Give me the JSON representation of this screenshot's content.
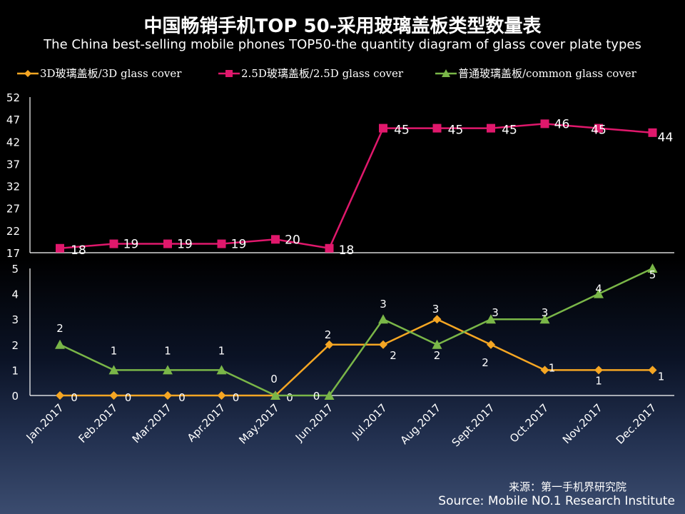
{
  "title": "中国畅销手机TOP 50-采用玻璃盖板类型数量表",
  "subtitle": "The China best-selling mobile phones TOP50-the quantity diagram of glass cover plate types",
  "source_cn": "来源：第一手机界研究院",
  "source_en": "Source: Mobile NO.1 Research Institute",
  "chart_data": {
    "type": "line",
    "categories": [
      "Jan.2017",
      "Feb.2017",
      "Mar.2017",
      "Apr.2017",
      "May.2017",
      "Jun.2017",
      "Jul.2017",
      "Aug.2017",
      "Sept.2017",
      "Oct.2017",
      "Nov.2017",
      "Dec.2017"
    ],
    "series": [
      {
        "name": "3D玻璃盖板/3D glass cover",
        "color": "#f5a623",
        "marker": "diamond",
        "axis": "lower",
        "values": [
          0,
          0,
          0,
          0,
          0,
          2,
          2,
          3,
          2,
          1,
          1,
          1
        ]
      },
      {
        "name": "2.5D玻璃盖板/2.5D glass cover",
        "color": "#e0186c",
        "marker": "square",
        "axis": "upper",
        "values": [
          18,
          19,
          19,
          19,
          20,
          18,
          45,
          45,
          45,
          46,
          45,
          44
        ]
      },
      {
        "name": "普通玻璃盖板/common glass cover",
        "color": "#7ab648",
        "marker": "triangle",
        "axis": "lower",
        "values": [
          2,
          1,
          1,
          1,
          0,
          0,
          3,
          2,
          3,
          3,
          4,
          5
        ]
      }
    ],
    "upper_axis": {
      "ticks": [
        17,
        22,
        27,
        32,
        37,
        42,
        47,
        52
      ],
      "ylim": [
        17,
        52
      ]
    },
    "lower_axis": {
      "ticks": [
        0,
        1,
        2,
        3,
        4,
        5
      ],
      "ylim": [
        0,
        5
      ]
    },
    "grid": false,
    "legend_position": "top"
  }
}
